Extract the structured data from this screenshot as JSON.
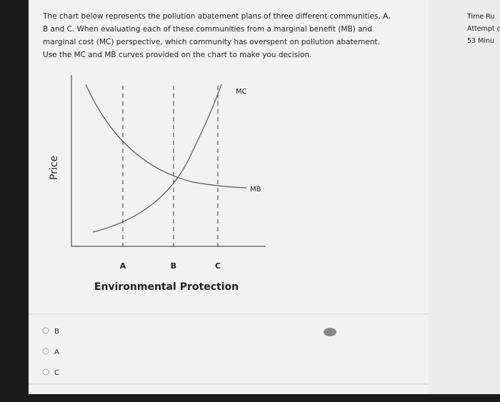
{
  "question": {
    "lines": [
      "The chart below represents the pollution abatement plans of three different communities, A,",
      "B and C. When evaluating each of these communities from a marginal benefit (MB) and",
      "marginal cost (MC) perspective, which community has overspent on pollution abatement.",
      "Use the MC and MB curves provided on the chart to make you decision."
    ]
  },
  "diagram": {
    "y_axis_label": "Price",
    "x_axis_label": "Environmental Protection",
    "curves": [
      "MC",
      "MB"
    ],
    "points": [
      "A",
      "B",
      "C"
    ]
  },
  "options": [
    "B",
    "A",
    "C"
  ],
  "sidebar": {
    "lines": [
      "Time Ru",
      "Attempt d",
      "53 Minu"
    ]
  }
}
